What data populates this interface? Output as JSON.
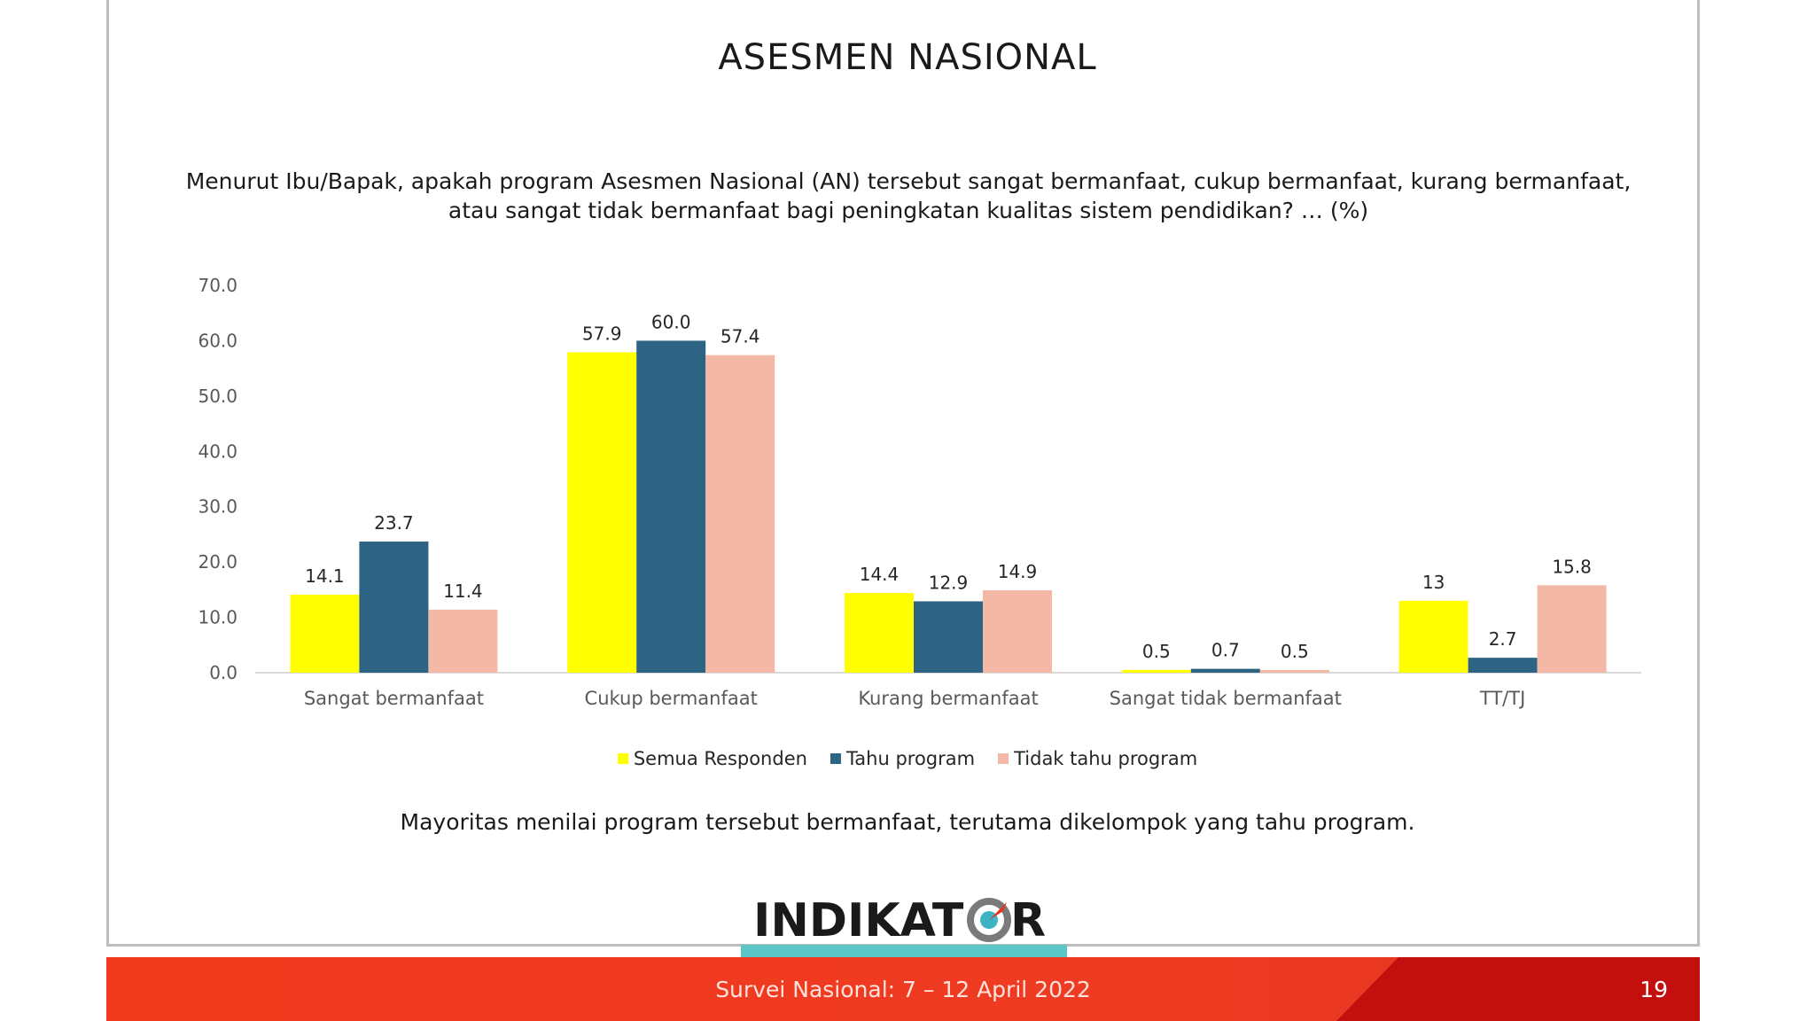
{
  "slide": {
    "title": "ASESMEN NASIONAL",
    "question": "Menurut Ibu/Bapak, apakah program Asesmen Nasional (AN) tersebut sangat bermanfaat, cukup bermanfaat, kurang bermanfaat, atau sangat tidak bermanfaat bagi peningkatan kualitas sistem pendidikan? … (%)",
    "note": "Mayoritas menilai program tersebut bermanfaat, terutama dikelompok yang tahu program.",
    "logo_text": "INDIKATOR",
    "footer_text": "Survei Nasional: 7 – 12 April 2022",
    "page_number": "19"
  },
  "chart_data": {
    "type": "bar",
    "categories": [
      "Sangat bermanfaat",
      "Cukup bermanfaat",
      "Kurang bermanfaat",
      "Sangat tidak bermanfaat",
      "TT/TJ"
    ],
    "series": [
      {
        "name": "Semua Responden",
        "color": "#ffff00",
        "values": [
          14.1,
          57.9,
          14.4,
          0.5,
          13
        ],
        "labels": [
          "14.1",
          "57.9",
          "14.4",
          "0.5",
          "13"
        ]
      },
      {
        "name": "Tahu program",
        "color": "#2e6483",
        "values": [
          23.7,
          60.0,
          12.9,
          0.7,
          2.7
        ],
        "labels": [
          "23.7",
          "60.0",
          "12.9",
          "0.7",
          "2.7"
        ]
      },
      {
        "name": "Tidak tahu program",
        "color": "#f4b8a6",
        "values": [
          11.4,
          57.4,
          14.9,
          0.5,
          15.8
        ],
        "labels": [
          "11.4",
          "57.4",
          "14.9",
          "0.5",
          "15.8"
        ]
      }
    ],
    "ylim": [
      0,
      70
    ],
    "yticks": [
      "0.0",
      "10.0",
      "20.0",
      "30.0",
      "40.0",
      "50.0",
      "60.0",
      "70.0"
    ],
    "grid": false,
    "legend_position": "bottom"
  }
}
